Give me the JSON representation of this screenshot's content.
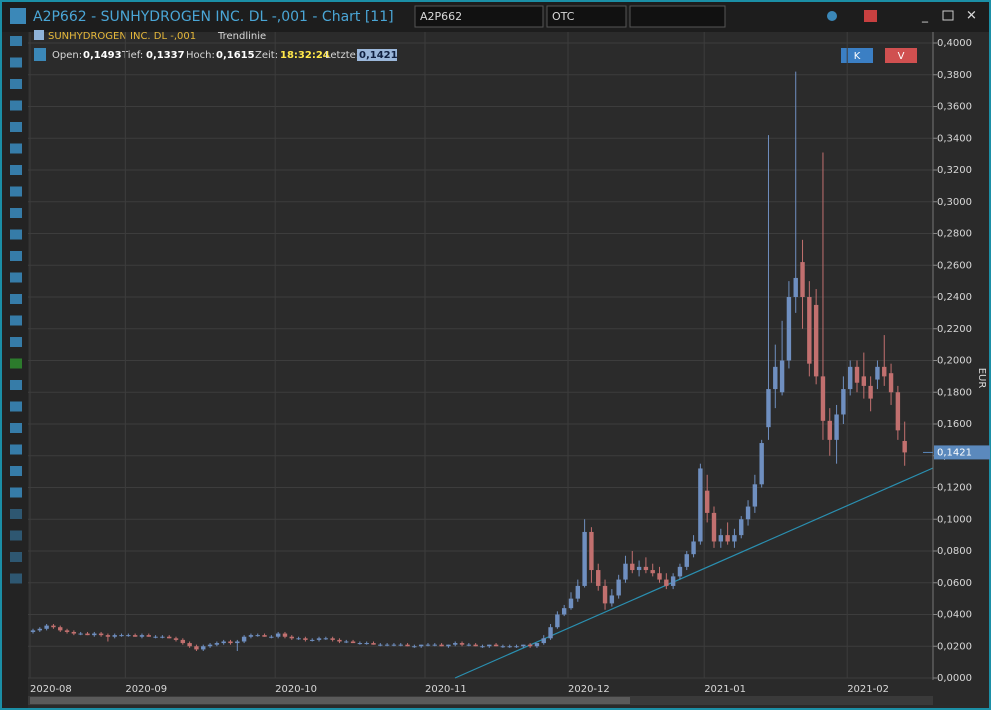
{
  "window": {
    "title": "A2P662 - SUNHYDROGEN INC. DL -,001 - Chart [11]",
    "symbol": "A2P662",
    "exchange": "OTC"
  },
  "legend": {
    "instrument": "SUNHYDROGEN INC. DL -,001",
    "tool": "Trendlinie"
  },
  "info": {
    "open_label": "Open:",
    "open": "0,1493",
    "low_label": "Tief:",
    "low": "0,1337",
    "high_label": "Hoch:",
    "high": "0,1615",
    "time_label": "Zeit:",
    "time": "18:32:24",
    "last_label": "Letzte:",
    "last": "0,1421"
  },
  "buttons": {
    "buy": "K",
    "sell": "V"
  },
  "chart_data": {
    "type": "candlestick",
    "y_label": "EUR",
    "up_color": "#6f8fc0",
    "down_color": "#c2706f",
    "categories": [
      "2020-08",
      null,
      null,
      null,
      null,
      null,
      null,
      null,
      null,
      null,
      null,
      null,
      null,
      null,
      "2020-09",
      null,
      null,
      null,
      null,
      null,
      null,
      null,
      null,
      null,
      null,
      null,
      null,
      null,
      null,
      null,
      null,
      null,
      null,
      null,
      null,
      null,
      "2020-10",
      null,
      null,
      null,
      null,
      null,
      null,
      null,
      null,
      null,
      null,
      null,
      null,
      null,
      null,
      null,
      null,
      null,
      null,
      null,
      null,
      null,
      "2020-11",
      null,
      null,
      null,
      null,
      null,
      null,
      null,
      null,
      null,
      null,
      null,
      null,
      null,
      null,
      null,
      null,
      null,
      null,
      null,
      null,
      "2020-12",
      null,
      null,
      null,
      null,
      null,
      null,
      null,
      null,
      null,
      null,
      null,
      null,
      null,
      null,
      null,
      null,
      null,
      null,
      null,
      "2021-01",
      null,
      null,
      null,
      null,
      null,
      null,
      null,
      null,
      null,
      null,
      null,
      null,
      null,
      null,
      null,
      null,
      null,
      null,
      null,
      null,
      "2021-02",
      null,
      null,
      null,
      null,
      null,
      null,
      null,
      null
    ],
    "open": [
      0.029,
      0.03,
      0.031,
      0.033,
      0.032,
      0.03,
      0.029,
      0.028,
      0.028,
      0.027,
      0.028,
      0.027,
      0.026,
      0.027,
      0.027,
      0.027,
      0.026,
      0.027,
      0.026,
      0.026,
      0.026,
      0.025,
      0.024,
      0.022,
      0.02,
      0.018,
      0.02,
      0.021,
      0.022,
      0.023,
      0.022,
      0.023,
      0.026,
      0.027,
      0.027,
      0.026,
      0.026,
      0.028,
      0.026,
      0.025,
      0.025,
      0.024,
      0.024,
      0.025,
      0.025,
      0.024,
      0.023,
      0.023,
      0.022,
      0.022,
      0.022,
      0.021,
      0.021,
      0.021,
      0.021,
      0.021,
      0.02,
      0.02,
      0.021,
      0.021,
      0.021,
      0.02,
      0.021,
      0.022,
      0.021,
      0.021,
      0.02,
      0.02,
      0.021,
      0.02,
      0.02,
      0.02,
      0.02,
      0.021,
      0.02,
      0.022,
      0.025,
      0.032,
      0.04,
      0.044,
      0.05,
      0.058,
      0.092,
      0.068,
      0.058,
      0.047,
      0.052,
      0.062,
      0.072,
      0.068,
      0.07,
      0.068,
      0.066,
      0.062,
      0.058,
      0.064,
      0.07,
      0.078,
      0.086,
      0.118,
      0.104,
      0.086,
      0.09,
      0.086,
      0.09,
      0.1,
      0.108,
      0.122,
      0.158,
      0.182,
      0.18,
      0.2,
      0.24,
      0.262,
      0.24,
      0.235,
      0.19,
      0.162,
      0.15,
      0.166,
      0.182,
      0.196,
      0.19,
      0.184,
      0.188,
      0.196,
      0.192,
      0.18,
      0.1493
    ],
    "high": [
      0.031,
      0.032,
      0.034,
      0.034,
      0.033,
      0.031,
      0.03,
      0.029,
      0.029,
      0.029,
      0.029,
      0.028,
      0.028,
      0.028,
      0.028,
      0.028,
      0.028,
      0.028,
      0.027,
      0.027,
      0.027,
      0.026,
      0.025,
      0.023,
      0.021,
      0.021,
      0.022,
      0.023,
      0.024,
      0.024,
      0.024,
      0.027,
      0.028,
      0.028,
      0.028,
      0.027,
      0.029,
      0.029,
      0.027,
      0.026,
      0.026,
      0.025,
      0.026,
      0.026,
      0.026,
      0.025,
      0.024,
      0.024,
      0.023,
      0.023,
      0.023,
      0.022,
      0.022,
      0.022,
      0.022,
      0.022,
      0.021,
      0.021,
      0.022,
      0.022,
      0.022,
      0.021,
      0.023,
      0.023,
      0.022,
      0.022,
      0.021,
      0.021,
      0.022,
      0.021,
      0.021,
      0.021,
      0.021,
      0.022,
      0.022,
      0.027,
      0.034,
      0.042,
      0.046,
      0.054,
      0.062,
      0.1,
      0.095,
      0.072,
      0.062,
      0.056,
      0.065,
      0.077,
      0.08,
      0.074,
      0.076,
      0.072,
      0.07,
      0.066,
      0.066,
      0.072,
      0.08,
      0.09,
      0.135,
      0.128,
      0.108,
      0.094,
      0.098,
      0.094,
      0.102,
      0.112,
      0.128,
      0.15,
      0.342,
      0.21,
      0.225,
      0.25,
      0.382,
      0.276,
      0.25,
      0.245,
      0.331,
      0.17,
      0.172,
      0.19,
      0.2,
      0.2,
      0.205,
      0.19,
      0.2,
      0.216,
      0.198,
      0.184,
      0.1615
    ],
    "low": [
      0.028,
      0.029,
      0.03,
      0.031,
      0.029,
      0.028,
      0.027,
      0.027,
      0.027,
      0.026,
      0.026,
      0.023,
      0.025,
      0.026,
      0.026,
      0.026,
      0.025,
      0.026,
      0.025,
      0.025,
      0.025,
      0.023,
      0.021,
      0.019,
      0.017,
      0.017,
      0.019,
      0.02,
      0.021,
      0.021,
      0.017,
      0.022,
      0.025,
      0.026,
      0.026,
      0.025,
      0.025,
      0.025,
      0.024,
      0.024,
      0.023,
      0.023,
      0.023,
      0.024,
      0.023,
      0.022,
      0.022,
      0.022,
      0.021,
      0.021,
      0.021,
      0.02,
      0.02,
      0.02,
      0.02,
      0.02,
      0.019,
      0.019,
      0.02,
      0.02,
      0.02,
      0.019,
      0.02,
      0.02,
      0.02,
      0.02,
      0.019,
      0.019,
      0.02,
      0.019,
      0.019,
      0.019,
      0.019,
      0.019,
      0.019,
      0.021,
      0.024,
      0.031,
      0.039,
      0.043,
      0.048,
      0.057,
      0.06,
      0.055,
      0.043,
      0.045,
      0.05,
      0.06,
      0.066,
      0.064,
      0.066,
      0.064,
      0.06,
      0.056,
      0.056,
      0.062,
      0.068,
      0.076,
      0.084,
      0.098,
      0.082,
      0.082,
      0.084,
      0.082,
      0.088,
      0.096,
      0.104,
      0.12,
      0.15,
      0.17,
      0.178,
      0.195,
      0.23,
      0.22,
      0.19,
      0.185,
      0.15,
      0.14,
      0.135,
      0.16,
      0.178,
      0.18,
      0.176,
      0.168,
      0.182,
      0.184,
      0.172,
      0.15,
      0.1337
    ],
    "close": [
      0.03,
      0.031,
      0.033,
      0.032,
      0.03,
      0.029,
      0.028,
      0.028,
      0.027,
      0.028,
      0.027,
      0.026,
      0.027,
      0.027,
      0.027,
      0.026,
      0.027,
      0.026,
      0.026,
      0.026,
      0.025,
      0.024,
      0.022,
      0.02,
      0.018,
      0.02,
      0.021,
      0.022,
      0.023,
      0.022,
      0.023,
      0.026,
      0.027,
      0.027,
      0.026,
      0.026,
      0.028,
      0.026,
      0.025,
      0.025,
      0.024,
      0.024,
      0.025,
      0.025,
      0.024,
      0.023,
      0.023,
      0.022,
      0.022,
      0.022,
      0.021,
      0.021,
      0.021,
      0.021,
      0.021,
      0.02,
      0.02,
      0.021,
      0.021,
      0.021,
      0.02,
      0.021,
      0.022,
      0.021,
      0.021,
      0.02,
      0.02,
      0.021,
      0.02,
      0.02,
      0.02,
      0.02,
      0.021,
      0.02,
      0.022,
      0.025,
      0.032,
      0.04,
      0.044,
      0.05,
      0.058,
      0.092,
      0.068,
      0.058,
      0.047,
      0.052,
      0.062,
      0.072,
      0.068,
      0.07,
      0.068,
      0.066,
      0.062,
      0.058,
      0.064,
      0.07,
      0.078,
      0.086,
      0.132,
      0.104,
      0.086,
      0.09,
      0.086,
      0.09,
      0.1,
      0.108,
      0.122,
      0.148,
      0.182,
      0.196,
      0.2,
      0.24,
      0.252,
      0.24,
      0.198,
      0.19,
      0.162,
      0.15,
      0.166,
      0.182,
      0.196,
      0.186,
      0.184,
      0.176,
      0.196,
      0.19,
      0.18,
      0.156,
      0.1421
    ],
    "ylim": [
      0,
      0.4
    ],
    "yticks": [
      {
        "value": 0,
        "label": "0,0000"
      },
      {
        "value": 0.02,
        "label": "0,0200"
      },
      {
        "value": 0.04,
        "label": "0,0400"
      },
      {
        "value": 0.06,
        "label": "0,0600"
      },
      {
        "value": 0.08,
        "label": "0,0800"
      },
      {
        "value": 0.1,
        "label": "0,1000"
      },
      {
        "value": 0.12,
        "label": "0,1200"
      },
      {
        "value": 0.14,
        "label": "0,1400"
      },
      {
        "value": 0.16,
        "label": "0,1600"
      },
      {
        "value": 0.18,
        "label": "0,1800"
      },
      {
        "value": 0.2,
        "label": "0,2000"
      },
      {
        "value": 0.22,
        "label": "0,2200"
      },
      {
        "value": 0.24,
        "label": "0,2400"
      },
      {
        "value": 0.26,
        "label": "0,2600"
      },
      {
        "value": 0.28,
        "label": "0,2800"
      },
      {
        "value": 0.3,
        "label": "0,3000"
      },
      {
        "value": 0.32,
        "label": "0,3200"
      },
      {
        "value": 0.34,
        "label": "0,3400"
      },
      {
        "value": 0.36,
        "label": "0,3600"
      },
      {
        "value": 0.38,
        "label": "0,3800"
      },
      {
        "value": 0.4,
        "label": "0,4000"
      }
    ],
    "grid": true
  }
}
